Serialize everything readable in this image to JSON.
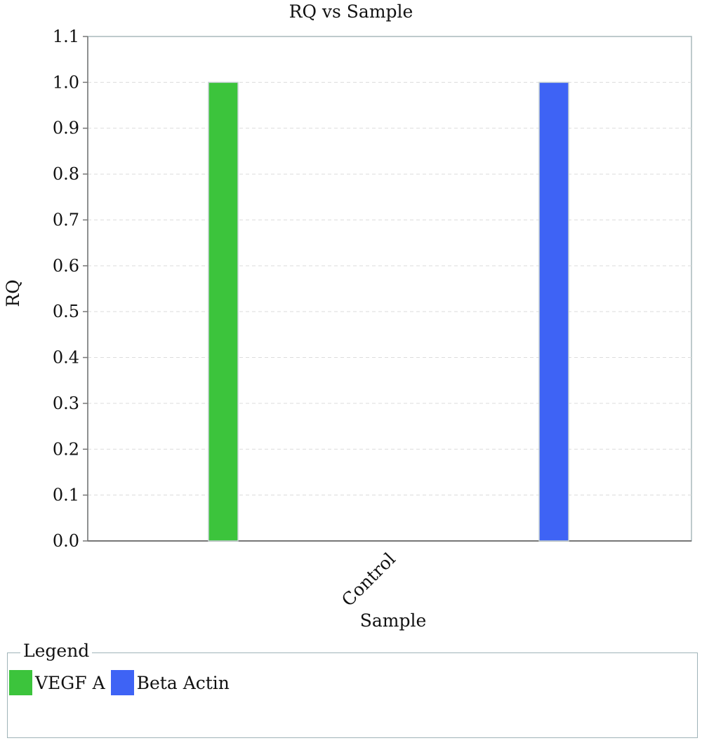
{
  "chart_data": {
    "type": "bar",
    "title": "RQ vs Sample",
    "xlabel": "Sample",
    "ylabel": "RQ",
    "categories": [
      "Control"
    ],
    "series": [
      {
        "name": "VEGF A",
        "values": [
          1.0
        ],
        "color": "#3cc43c"
      },
      {
        "name": "Beta Actin",
        "values": [
          1.0
        ],
        "color": "#3e63f5"
      }
    ],
    "ylim": [
      0.0,
      1.1
    ],
    "yticks": [
      "0.0",
      "0.1",
      "0.2",
      "0.3",
      "0.4",
      "0.5",
      "0.6",
      "0.7",
      "0.8",
      "0.9",
      "1.0",
      "1.1"
    ],
    "grid": true,
    "legend_position": "bottom",
    "legend_title": "Legend"
  }
}
